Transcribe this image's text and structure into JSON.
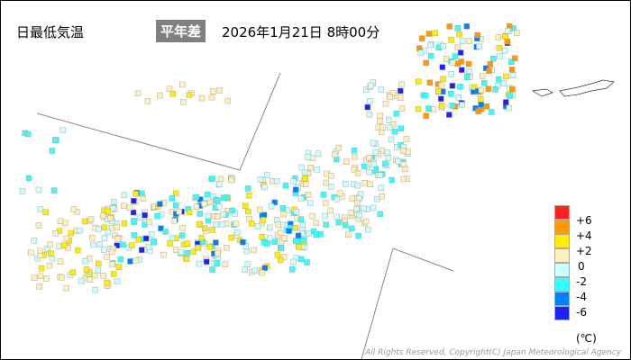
{
  "header": {
    "title": "日最低気温",
    "badge": "平年差",
    "datetime": "2026年1月21日 8時00分"
  },
  "legend": {
    "unit": "(℃)",
    "items": [
      {
        "label": "+6",
        "color": "#ff2020"
      },
      {
        "label": "+4",
        "color": "#ff9900"
      },
      {
        "label": "+2",
        "color": "#ffee00"
      },
      {
        "label": "0",
        "color": "#ffefb8"
      },
      {
        "label": "-2",
        "color": "#ccffff"
      },
      {
        "label": "-4",
        "color": "#33ffff"
      },
      {
        "label": "-6",
        "color": "#0080ff"
      },
      {
        "label": "",
        "color": "#2020ff"
      }
    ]
  },
  "copyright": "All Rights Reserved, Copyright(C) Japan Meteorological Agency"
}
